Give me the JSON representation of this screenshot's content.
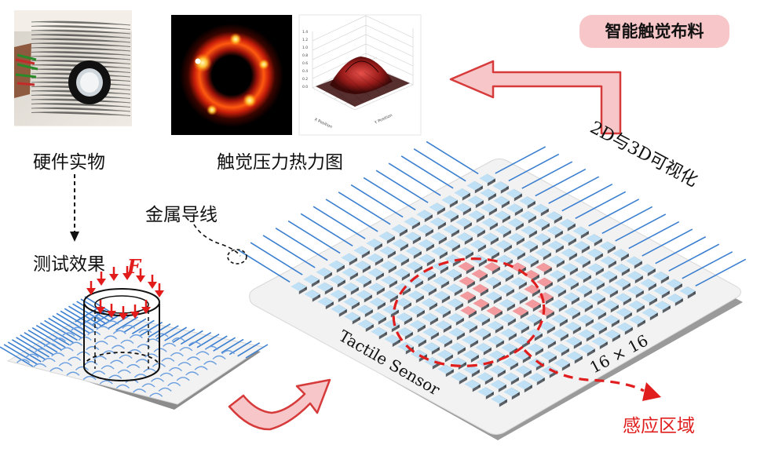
{
  "captions": {
    "hardware": "硬件实物",
    "heatmap": "触觉压力热力图",
    "test_effect": "测试效果",
    "metal_wire": "金属导线",
    "visualization": "2D与3D可视化",
    "sensing_region": "感应区域",
    "smart_fabric": "智能触觉布料"
  },
  "sensor": {
    "label": "Tactile Sensor",
    "grid_size": "16 × 16",
    "rows": 16,
    "cols": 16
  },
  "force_label": "F",
  "plot3d": {
    "z_ticks": [
      "1.4",
      "1.2",
      "1.0",
      "0.8",
      "0.6",
      "0.4",
      "0.2",
      "0.0"
    ],
    "x_label": "Y Position",
    "y_label": "X Position"
  },
  "colors": {
    "wire": "#3b7fd0",
    "pad_top": "#bfe0f5",
    "pad_side": "#5a6066",
    "active_pad": "#f29a9d",
    "dashed_region": "#e01e1e",
    "arrow_fill": "#f7c6c8",
    "arrow_stroke": "#d63a3a",
    "force_arrow": "#e21b1b"
  }
}
